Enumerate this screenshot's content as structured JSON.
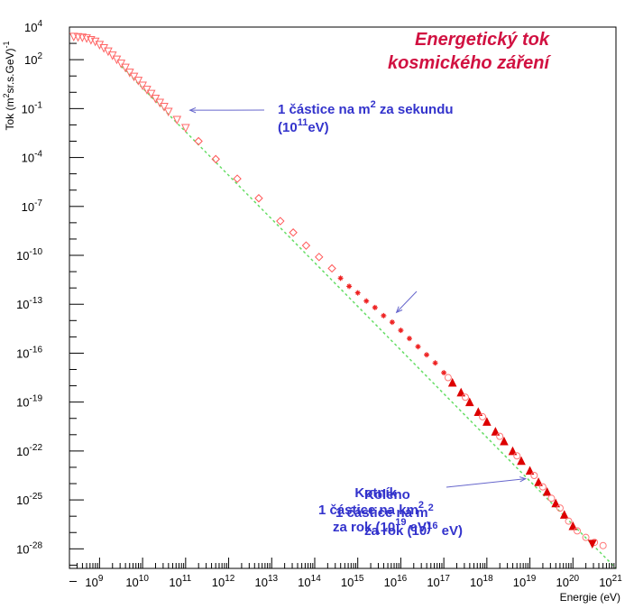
{
  "chart_data": {
    "type": "scatter",
    "title": [
      "Energetický tok",
      "kosmického záření"
    ],
    "xlabel": "Energie (eV)",
    "ylabel": {
      "base": "Tok (m",
      "sup1": "2",
      "mid": "sr.s.GeV)",
      "sup2": "-1"
    },
    "xscale": "log",
    "yscale": "log",
    "xlim_exp": [
      8.3,
      21
    ],
    "ylim_exp": [
      -29.2,
      4
    ],
    "x_ticks": [
      {
        "base": "10",
        "exp": "9",
        "value_exp": 9
      },
      {
        "base": "10",
        "exp": "10",
        "value_exp": 10
      },
      {
        "base": "10",
        "exp": "11",
        "value_exp": 11
      },
      {
        "base": "10",
        "exp": "12",
        "value_exp": 12
      },
      {
        "base": "10",
        "exp": "13",
        "value_exp": 13
      },
      {
        "base": "10",
        "exp": "14",
        "value_exp": 14
      },
      {
        "base": "10",
        "exp": "15",
        "value_exp": 15
      },
      {
        "base": "10",
        "exp": "16",
        "value_exp": 16
      },
      {
        "base": "10",
        "exp": "17",
        "value_exp": 17
      },
      {
        "base": "10",
        "exp": "18",
        "value_exp": 18
      },
      {
        "base": "10",
        "exp": "19",
        "value_exp": 19
      },
      {
        "base": "10",
        "exp": "20",
        "value_exp": 20
      },
      {
        "base": "10",
        "exp": "21",
        "value_exp": 21
      }
    ],
    "y_ticks": [
      {
        "base": "10",
        "exp": "4",
        "value_exp": 4
      },
      {
        "base": "10",
        "exp": "2",
        "value_exp": 2
      },
      {
        "base": "10",
        "exp": "-1",
        "value_exp": -1
      },
      {
        "base": "10",
        "exp": "-4",
        "value_exp": -4
      },
      {
        "base": "10",
        "exp": "-7",
        "value_exp": -7
      },
      {
        "base": "10",
        "exp": "-10",
        "value_exp": -10
      },
      {
        "base": "10",
        "exp": "-13",
        "value_exp": -13
      },
      {
        "base": "10",
        "exp": "-16",
        "value_exp": -16
      },
      {
        "base": "10",
        "exp": "-19",
        "value_exp": -19
      },
      {
        "base": "10",
        "exp": "-22",
        "value_exp": -22
      },
      {
        "base": "10",
        "exp": "-25",
        "value_exp": -25
      },
      {
        "base": "10",
        "exp": "-28",
        "value_exp": -28
      }
    ],
    "series": [
      {
        "marker": "triangle-down-open",
        "color": "#ff6666",
        "points": [
          [
            8.4,
            3.4
          ],
          [
            8.5,
            3.38
          ],
          [
            8.6,
            3.35
          ],
          [
            8.7,
            3.3
          ],
          [
            8.8,
            3.2
          ],
          [
            8.9,
            3.1
          ],
          [
            9.0,
            2.9
          ],
          [
            9.1,
            2.7
          ],
          [
            9.2,
            2.5
          ],
          [
            9.3,
            2.25
          ],
          [
            9.4,
            2.0
          ],
          [
            9.5,
            1.75
          ],
          [
            9.6,
            1.5
          ],
          [
            9.7,
            1.2
          ],
          [
            9.8,
            0.95
          ],
          [
            9.9,
            0.7
          ],
          [
            10.0,
            0.4
          ],
          [
            10.1,
            0.15
          ],
          [
            10.2,
            -0.1
          ],
          [
            10.3,
            -0.4
          ],
          [
            10.4,
            -0.65
          ],
          [
            10.5,
            -0.9
          ],
          [
            10.6,
            -1.2
          ],
          [
            10.8,
            -1.7
          ],
          [
            11.0,
            -2.2
          ]
        ]
      },
      {
        "marker": "diamond-open",
        "color": "#ff5555",
        "points": [
          [
            11.3,
            -3.0
          ],
          [
            11.7,
            -4.1
          ],
          [
            12.2,
            -5.3
          ],
          [
            12.7,
            -6.5
          ],
          [
            13.2,
            -7.9
          ],
          [
            13.5,
            -8.6
          ],
          [
            13.8,
            -9.4
          ],
          [
            14.1,
            -10.1
          ],
          [
            14.4,
            -10.8
          ]
        ]
      },
      {
        "marker": "star",
        "color": "#ee2222",
        "points": [
          [
            14.6,
            -11.4
          ],
          [
            14.8,
            -11.9
          ],
          [
            15.0,
            -12.3
          ],
          [
            15.2,
            -12.8
          ],
          [
            15.4,
            -13.2
          ],
          [
            15.6,
            -13.7
          ],
          [
            15.8,
            -14.1
          ],
          [
            16.0,
            -14.6
          ],
          [
            16.2,
            -15.1
          ],
          [
            16.4,
            -15.6
          ],
          [
            16.6,
            -16.1
          ],
          [
            16.8,
            -16.6
          ],
          [
            17.0,
            -17.2
          ]
        ]
      },
      {
        "marker": "triangle-up-filled",
        "color": "#dd0000",
        "points": [
          [
            17.2,
            -17.8
          ],
          [
            17.4,
            -18.4
          ],
          [
            17.6,
            -19.0
          ],
          [
            17.8,
            -19.6
          ],
          [
            18.0,
            -20.2
          ],
          [
            18.2,
            -20.8
          ],
          [
            18.4,
            -21.4
          ],
          [
            18.6,
            -22.0
          ],
          [
            18.8,
            -22.6
          ],
          [
            19.0,
            -23.2
          ],
          [
            19.2,
            -23.9
          ],
          [
            19.4,
            -24.5
          ],
          [
            19.6,
            -25.2
          ],
          [
            19.8,
            -25.9
          ],
          [
            20.0,
            -26.6
          ]
        ]
      },
      {
        "marker": "circle-open",
        "color": "#ff7777",
        "points": [
          [
            17.1,
            -17.5
          ],
          [
            17.5,
            -18.7
          ],
          [
            17.9,
            -19.9
          ],
          [
            18.3,
            -21.1
          ],
          [
            18.7,
            -22.3
          ],
          [
            19.1,
            -23.5
          ],
          [
            19.3,
            -24.2
          ],
          [
            19.5,
            -24.9
          ],
          [
            19.7,
            -25.5
          ],
          [
            19.9,
            -26.3
          ],
          [
            20.1,
            -26.9
          ],
          [
            20.3,
            -27.3
          ],
          [
            20.5,
            -27.6
          ],
          [
            20.7,
            -27.8
          ]
        ]
      },
      {
        "marker": "triangle-down-filled",
        "color": "#dd0000",
        "points": [
          [
            20.45,
            -27.7
          ]
        ]
      }
    ],
    "fit_line": {
      "color": "#66dd66",
      "from": [
        9.5,
        1.6
      ],
      "to": [
        21.0,
        -29.2
      ]
    },
    "annotations": [
      {
        "lines": [
          {
            "text": "1 částice na m",
            "sup": "2",
            "after": " za sekundu"
          },
          {
            "text": "(10",
            "sup": "11",
            "after": "eV)"
          }
        ],
        "arrow_to_exp": [
          11.1,
          -1.1
        ]
      },
      {
        "lines": [
          {
            "text": "Koleno",
            "sup": "",
            "after": ""
          },
          {
            "text": "1 částice na m",
            "sup": "2",
            "after": ""
          },
          {
            "text": "za rok (10",
            "sup": "16",
            "after": " eV)"
          }
        ],
        "arrow_to_exp": [
          15.9,
          -13.5
        ]
      },
      {
        "lines": [
          {
            "text": "Kotník",
            "sup": "",
            "after": ""
          },
          {
            "text": "1 částice na km",
            "sup": "2",
            "after": ""
          },
          {
            "text": "za rok (10",
            "sup": "19",
            "after": " eV)"
          }
        ],
        "arrow_to_exp": [
          18.9,
          -23.7
        ]
      }
    ]
  }
}
